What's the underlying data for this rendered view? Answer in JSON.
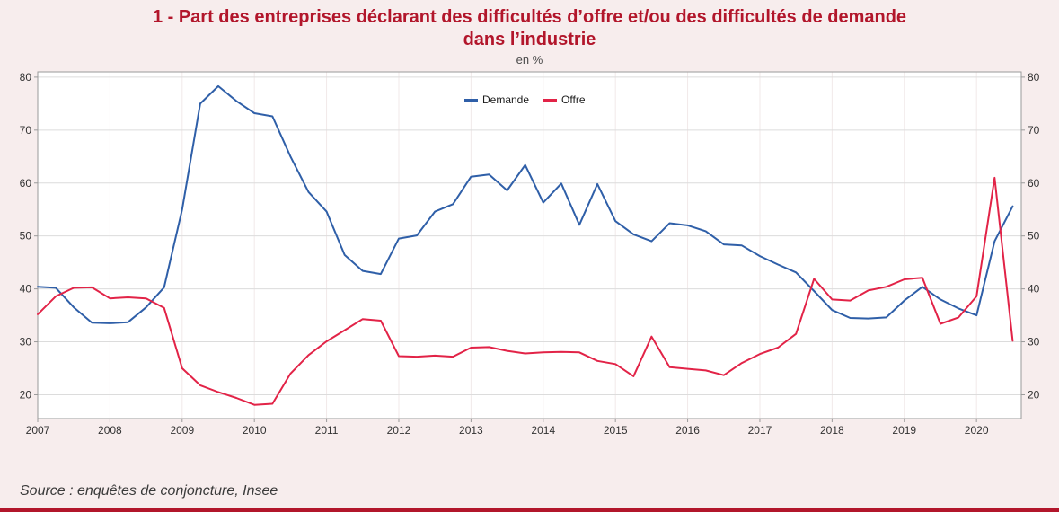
{
  "figure": {
    "title_line1": "1 - Part des entreprises déclarant des difficultés d’offre et/ou des difficultés de demande",
    "title_line2": "dans l’industrie",
    "unit_label": "en %",
    "source_note": "Source : enquêtes de conjoncture, Insee"
  },
  "colors": {
    "background": "#f7eded",
    "title_red": "#b2162b",
    "demande_blue": "#2f5fa8",
    "offre_red": "#e22347",
    "grid": "#dcdcdc",
    "frame": "#9a9a9a",
    "bottom_rule": "#b2162b"
  },
  "chart_data": {
    "type": "line",
    "title": "1 - Part des entreprises déclarant des difficultés d’offre et/ou des difficultés de demande dans l’industrie",
    "unit": "en %",
    "xlabel": "",
    "ylabel": "en %",
    "xlim": [
      2007,
      2020.62
    ],
    "ylim": [
      15.5,
      81
    ],
    "x_ticks": [
      2007,
      2008,
      2009,
      2010,
      2011,
      2012,
      2013,
      2014,
      2015,
      2016,
      2017,
      2018,
      2019,
      2020
    ],
    "y_ticks": [
      20,
      30,
      40,
      50,
      60,
      70,
      80
    ],
    "grid": true,
    "legend_position": "top-center",
    "x": [
      2007.0,
      2007.25,
      2007.5,
      2007.75,
      2008.0,
      2008.25,
      2008.5,
      2008.75,
      2009.0,
      2009.25,
      2009.5,
      2009.75,
      2010.0,
      2010.25,
      2010.5,
      2010.75,
      2011.0,
      2011.25,
      2011.5,
      2011.75,
      2012.0,
      2012.25,
      2012.5,
      2012.75,
      2013.0,
      2013.25,
      2013.5,
      2013.75,
      2014.0,
      2014.25,
      2014.5,
      2014.75,
      2015.0,
      2015.25,
      2015.5,
      2015.75,
      2016.0,
      2016.25,
      2016.5,
      2016.75,
      2017.0,
      2017.25,
      2017.5,
      2017.75,
      2018.0,
      2018.25,
      2018.5,
      2018.75,
      2019.0,
      2019.25,
      2019.5,
      2019.75,
      2020.0,
      2020.25,
      2020.5
    ],
    "series": [
      {
        "name": "Demande",
        "color": "#2f5fa8",
        "values": [
          40.4,
          40.2,
          36.5,
          33.6,
          33.5,
          33.7,
          36.5,
          40.3,
          55.0,
          75.0,
          78.3,
          75.5,
          73.2,
          72.6,
          65.0,
          58.3,
          54.6,
          46.4,
          43.4,
          42.8,
          49.5,
          50.1,
          54.6,
          56.0,
          61.2,
          61.6,
          58.6,
          63.4,
          56.3,
          59.9,
          52.1,
          59.8,
          52.8,
          50.3,
          49.0,
          52.4,
          52.0,
          50.9,
          48.4,
          48.2,
          46.2,
          44.6,
          43.1,
          39.6,
          36.0,
          34.5,
          34.4,
          34.6,
          37.8,
          40.4,
          38.0,
          36.3,
          35.0,
          49.0,
          55.6
        ]
      },
      {
        "name": "Offre",
        "color": "#e22347",
        "values": [
          35.2,
          38.6,
          40.2,
          40.3,
          38.2,
          38.4,
          38.2,
          36.4,
          25.0,
          21.8,
          20.5,
          19.4,
          18.1,
          18.3,
          24.0,
          27.5,
          30.1,
          32.2,
          34.3,
          34.0,
          27.3,
          27.2,
          27.4,
          27.2,
          28.9,
          29.0,
          28.3,
          27.8,
          28.0,
          28.1,
          28.0,
          26.4,
          25.8,
          23.5,
          31.0,
          25.2,
          24.9,
          24.6,
          23.7,
          26.0,
          27.7,
          28.9,
          31.5,
          41.9,
          38.0,
          37.8,
          39.7,
          40.4,
          41.8,
          42.1,
          33.4,
          34.6,
          38.6,
          61.0,
          30.2
        ]
      }
    ]
  }
}
